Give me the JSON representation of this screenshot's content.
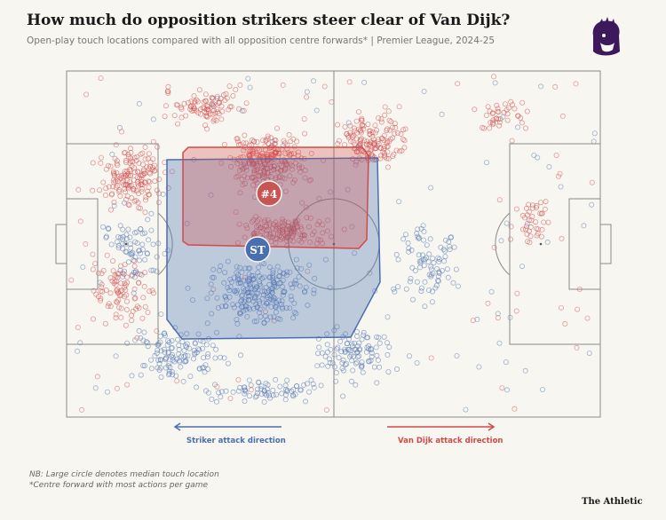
{
  "header": {
    "title": "How much do opposition strikers steer clear of Van Dijk?",
    "subtitle": "Open-play touch locations compared with all opposition centre forwards* | Premier League, 2024-25"
  },
  "icons": {
    "logo": "premier-league-lion-icon"
  },
  "colors": {
    "background": "#f7f6f0",
    "pitch_line": "#8a8a8a",
    "van_dijk": "#d44848",
    "striker": "#4a6fb0"
  },
  "chart_data": {
    "type": "scatter",
    "title": "How much do opposition strikers steer clear of Van Dijk?",
    "subtitle": "Open-play touch locations compared with all opposition centre forwards* | Premier League, 2024-25",
    "series": [
      {
        "label": "#4",
        "color": "#d44848",
        "direction_label": "Van Dijk attack direction",
        "median_location": [
          37,
          38
        ],
        "zone": {
          "x_range": [
            22,
            56
          ],
          "y_range": [
            24,
            53
          ]
        }
      },
      {
        "label": "ST",
        "color": "#4a6fb0",
        "direction_label": "Striker attack direction",
        "median_location": [
          36,
          48
        ],
        "zone": {
          "x_range": [
            18,
            57
          ],
          "y_range": [
            36,
            79
          ]
        }
      }
    ],
    "notes": [
      "NB: Large circle denotes median touch location",
      "*Centre forward with most actions per game"
    ],
    "legend": "none"
  },
  "footer": {
    "striker_direction": "Striker attack direction",
    "vandijk_direction": "Van Dijk attack direction",
    "note1": "NB: Large circle denotes median touch location",
    "note2": "*Centre forward with most actions per game",
    "brand": "The Athletic"
  }
}
